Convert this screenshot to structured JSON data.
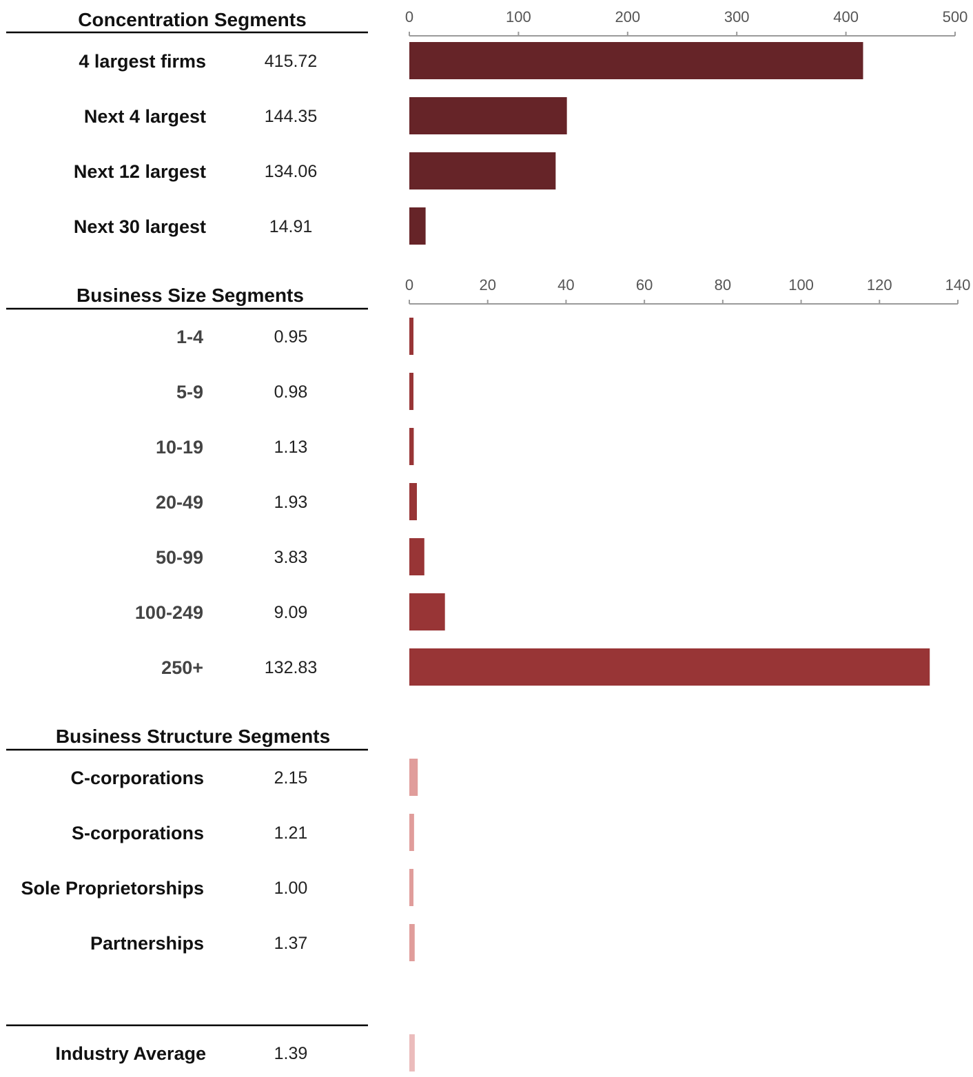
{
  "colors": {
    "concentration_bar": "#662428",
    "size_bar": "#983536",
    "structure_bar": "#e09d9b",
    "average_bar": "#ebbcbc",
    "axis": "#9a9a9a",
    "label_dark": "#111111",
    "label_size": "#444444"
  },
  "chart_data": [
    {
      "type": "bar",
      "orientation": "horizontal",
      "title": "Concentration Segments",
      "categories": [
        "4 largest firms",
        "Next 4 largest",
        "Next 12 largest",
        "Next 30 largest"
      ],
      "values": [
        415.72,
        144.35,
        134.06,
        14.91
      ],
      "value_labels": [
        "415.72",
        "144.35",
        "134.06",
        "14.91"
      ],
      "xlim": [
        0,
        500
      ],
      "ticks": [
        0,
        100,
        200,
        300,
        400,
        500
      ],
      "axis_position": "top"
    },
    {
      "type": "bar",
      "orientation": "horizontal",
      "title": "Business Size Segments",
      "categories": [
        "1-4",
        "5-9",
        "10-19",
        "20-49",
        "50-99",
        "100-249",
        "250+"
      ],
      "values": [
        0.95,
        0.98,
        1.13,
        1.93,
        3.83,
        9.09,
        132.83
      ],
      "value_labels": [
        "0.95",
        "0.98",
        "1.13",
        "1.93",
        "3.83",
        "9.09",
        "132.83"
      ],
      "xlim": [
        0,
        140
      ],
      "ticks": [
        0,
        20,
        40,
        60,
        80,
        100,
        120,
        140
      ],
      "axis_position": "top"
    },
    {
      "type": "bar",
      "orientation": "horizontal",
      "title": "Business Structure Segments",
      "categories": [
        "C-corporations",
        "S-corporations",
        "Sole Proprietorships",
        "Partnerships"
      ],
      "values": [
        2.15,
        1.21,
        1.0,
        1.37
      ],
      "value_labels": [
        "2.15",
        "1.21",
        "1.00",
        "1.37"
      ],
      "xlim": [
        0,
        140
      ]
    },
    {
      "type": "bar",
      "orientation": "horizontal",
      "title": "",
      "categories": [
        "Industry Average"
      ],
      "values": [
        1.39
      ],
      "value_labels": [
        "1.39"
      ],
      "xlim": [
        0,
        140
      ]
    }
  ]
}
